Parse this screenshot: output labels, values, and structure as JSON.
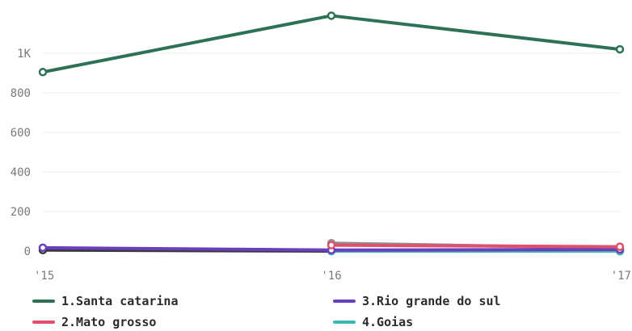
{
  "chart_data": {
    "type": "line",
    "title": "",
    "xlabel": "",
    "ylabel": "",
    "categories": [
      "'15",
      "'16",
      "'17"
    ],
    "y_ticks": [
      {
        "value": 0,
        "label": "0"
      },
      {
        "value": 200,
        "label": "200"
      },
      {
        "value": 400,
        "label": "400"
      },
      {
        "value": 600,
        "label": "600"
      },
      {
        "value": 800,
        "label": "800"
      },
      {
        "value": 1000,
        "label": "1K"
      }
    ],
    "ylim": [
      0,
      1200
    ],
    "grid": true,
    "legend_position": "bottom",
    "series": [
      {
        "name": "1.Santa catarina",
        "color": "#2d7257",
        "values": [
          905,
          1190,
          1020
        ]
      },
      {
        "name": "2.Mato grosso",
        "color": "#e0506a",
        "values": [
          null,
          30,
          22
        ]
      },
      {
        "name": "3.Rio grande do sul",
        "color": "#6a3fbd",
        "values": [
          17,
          5,
          8
        ]
      },
      {
        "name": "4.Goias",
        "color": "#3fb7b0",
        "values": [
          null,
          0,
          0
        ]
      }
    ],
    "extra_series": [
      {
        "name": "",
        "color": "#8f8f8f",
        "values": [
          null,
          40,
          15
        ]
      },
      {
        "name": "",
        "color": "#3a3a3a",
        "values": [
          5,
          0,
          0
        ]
      }
    ]
  }
}
